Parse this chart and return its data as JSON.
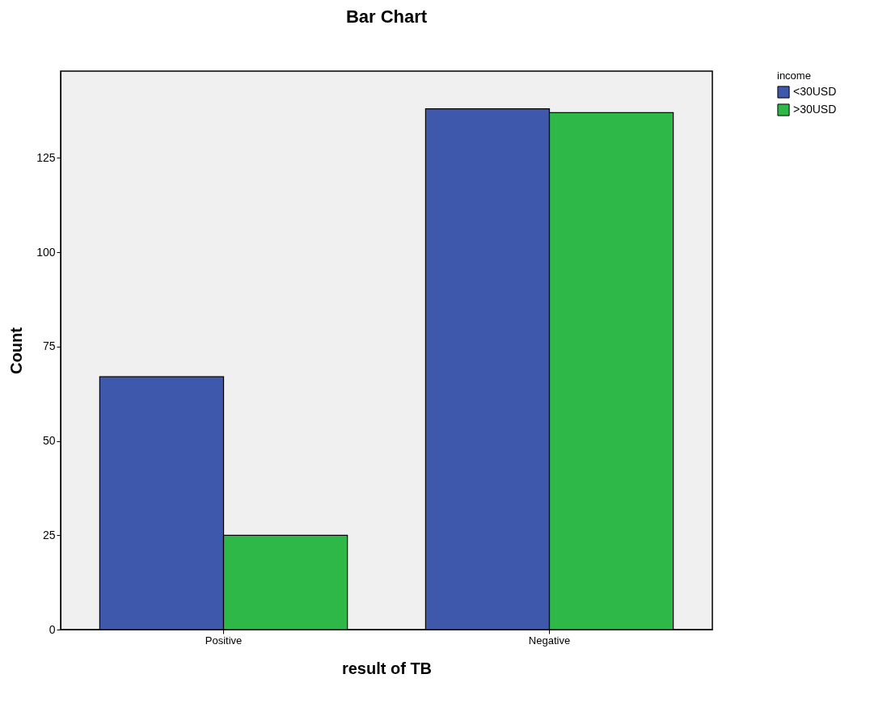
{
  "chart_data": {
    "type": "bar",
    "title": "Bar Chart",
    "xlabel": "result of TB",
    "ylabel": "Count",
    "legend_title": "income",
    "categories": [
      "Positive",
      "Negative"
    ],
    "series": [
      {
        "name": "<30USD",
        "color": "#3e58ac",
        "values": [
          67,
          138
        ]
      },
      {
        "name": ">30USD",
        "color": "#2eb848",
        "values": [
          25,
          137
        ]
      }
    ],
    "ylim": [
      0,
      148
    ],
    "yticks": [
      0,
      25,
      50,
      75,
      100,
      125
    ],
    "grid": false,
    "legend": "top right"
  }
}
